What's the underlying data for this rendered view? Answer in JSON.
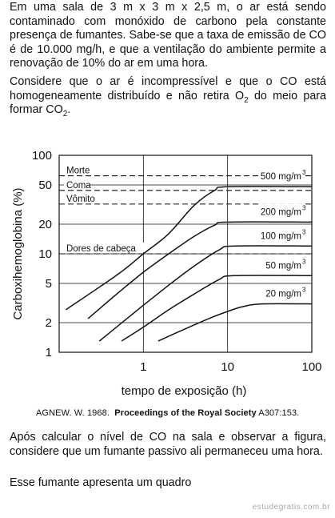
{
  "intro": {
    "paragraph1": "Em uma sala de 3 m x 3 m x 2,5 m, o ar está sendo contaminado com monóxido de carbono pela constante presença de fumantes. Sabe-se que a taxa de emissão de CO é de 10.000 mg/h, e que a ventilação do ambiente permite a renovação de 10% do ar em uma hora.",
    "paragraph2_before": "Considere que o ar é incompressível e que o CO está homogeneamente distribuído e não retira O",
    "paragraph2_sub1": "2",
    "paragraph2_middle": " do meio para formar CO",
    "paragraph2_sub2": "2",
    "paragraph2_end": "."
  },
  "chart_data": {
    "type": "line",
    "xlabel": "tempo de exposição (h)",
    "ylabel": "Carboxihemoglobina (%)",
    "x_scale": "log",
    "y_scale": "log",
    "xlim": [
      0.1,
      100
    ],
    "ylim": [
      1,
      100
    ],
    "x_ticks": [
      "1",
      "10",
      "100"
    ],
    "x_tick_values": [
      1,
      10,
      100
    ],
    "y_ticks": [
      "1",
      "2",
      "5",
      "10",
      "20",
      "50",
      "100"
    ],
    "y_tick_values": [
      1,
      2,
      5,
      10,
      20,
      50,
      100
    ],
    "thresholds": [
      {
        "label": "Morte",
        "value": 62
      },
      {
        "label": "Coma",
        "value": 44
      },
      {
        "label": "Vômito",
        "value": 32
      },
      {
        "label": "Dores de cabeça",
        "value": 10
      }
    ],
    "series": [
      {
        "name": "500 mg/m",
        "sup": "3",
        "x": [
          0.12,
          0.5,
          1,
          2,
          4,
          7,
          10,
          100
        ],
        "y": [
          2.7,
          6.2,
          10,
          16,
          31,
          44,
          48,
          48
        ]
      },
      {
        "name": "200 mg/m",
        "sup": "3",
        "x": [
          0.22,
          0.5,
          1,
          2,
          4,
          7,
          10,
          100
        ],
        "y": [
          2.2,
          4,
          6.5,
          10,
          15,
          19.5,
          21,
          21
        ]
      },
      {
        "name": "100 mg/m",
        "sup": "3",
        "x": [
          0.3,
          1,
          2,
          4,
          8,
          12,
          100
        ],
        "y": [
          1.3,
          3,
          4.8,
          7.5,
          11,
          12,
          12
        ]
      },
      {
        "name": "50 mg/m",
        "sup": "3",
        "x": [
          0.55,
          1,
          2,
          4,
          8,
          12,
          100
        ],
        "y": [
          1.3,
          1.8,
          2.7,
          3.9,
          5.5,
          6,
          6
        ]
      },
      {
        "name": "20 mg/m",
        "sup": "3",
        "x": [
          1.5,
          3,
          6,
          10,
          15,
          25,
          100
        ],
        "y": [
          1.3,
          1.7,
          2.2,
          2.6,
          2.9,
          3.1,
          3.1
        ]
      }
    ]
  },
  "citation": {
    "author": "AGNEW. W. 1968.",
    "journal": "Proceedings of the Royal Society",
    "ref": "A307:153."
  },
  "question": {
    "paragraph3": "Após calcular o nível de CO na sala e observar a figura, considere que um fumante passivo ali permaneceu uma hora.",
    "paragraph4": "Esse fumante apresenta um quadro"
  },
  "watermark": "estudegratis.com.br"
}
